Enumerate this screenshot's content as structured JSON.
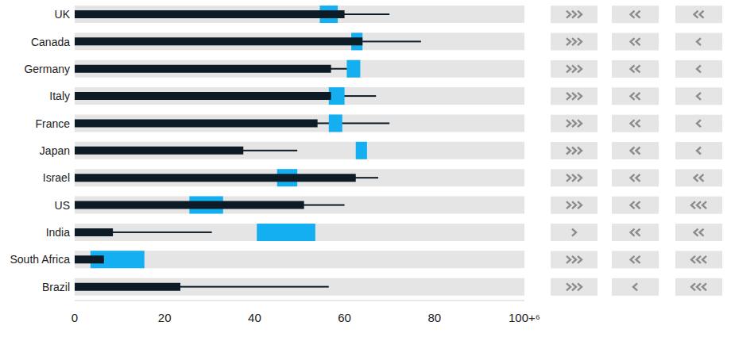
{
  "chart_data": {
    "type": "bar",
    "orientation": "horizontal",
    "grid": false,
    "categories": [
      "UK",
      "Canada",
      "Germany",
      "Italy",
      "France",
      "Japan",
      "Israel",
      "US",
      "India",
      "South Africa",
      "Brazil"
    ],
    "xlim": [
      0,
      100
    ],
    "xticks": [
      0,
      20,
      40,
      60,
      80,
      {
        "value": 100,
        "label": "100+⁶"
      }
    ],
    "series": [
      {
        "type": "whisker",
        "color": "#0c1b26",
        "values": [
          70,
          77,
          63,
          67,
          70,
          49.5,
          67.5,
          60,
          30.5,
          12.5,
          56.5
        ]
      },
      {
        "type": "range",
        "color": "#13aff0",
        "values": [
          [
            54.5,
            58.5
          ],
          [
            61.5,
            64
          ],
          [
            60.5,
            63.5
          ],
          [
            56.5,
            60
          ],
          [
            56.5,
            59.5
          ],
          [
            62.5,
            65
          ],
          [
            45,
            49.5
          ],
          [
            25.5,
            33
          ],
          [
            40.5,
            53.5
          ],
          [
            3.5,
            15.5
          ],
          null
        ]
      },
      {
        "type": "bar",
        "color": "#0c1b26",
        "values": [
          60,
          64,
          57,
          57,
          54,
          37.5,
          62.5,
          51,
          8.5,
          6.5,
          23.5
        ]
      }
    ],
    "indicators": [
      {
        "marker": "chevron_right",
        "color": "#8c8c8c",
        "values": [
          3,
          3,
          3,
          3,
          3,
          3,
          3,
          3,
          1,
          3,
          3
        ]
      },
      {
        "marker": "chevron_left",
        "color": "#8c8c8c",
        "values": [
          2,
          2,
          2,
          2,
          2,
          2,
          2,
          2,
          2,
          2,
          1
        ]
      },
      {
        "marker": "chevron_left",
        "color": "#8c8c8c",
        "values": [
          2,
          1,
          1,
          1,
          1,
          1,
          2,
          3,
          2,
          3,
          3
        ]
      }
    ]
  }
}
